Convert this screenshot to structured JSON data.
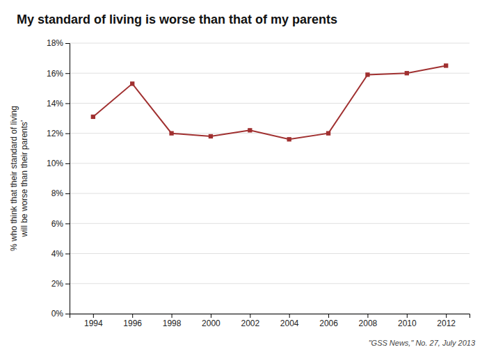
{
  "chart_data": {
    "type": "line",
    "title": "My standard of living is worse than that of my parents",
    "ylabel": "% who think that their standard of living\nwill be worse than their parents’",
    "annotations": [
      "\"GSS News,\" No. 27, July 2013"
    ],
    "x": [
      1994,
      1996,
      1998,
      2000,
      2002,
      2004,
      2006,
      2008,
      2010,
      2012
    ],
    "y": [
      0.131,
      0.153,
      0.12,
      0.118,
      0.122,
      0.116,
      0.12,
      0.159,
      0.16,
      0.165
    ],
    "color": "#A03030",
    "marker": "square",
    "ylim": [
      0,
      0.18
    ],
    "yticks": [
      {
        "value": 0,
        "label": "0%"
      },
      {
        "value": 0.02,
        "label": "2%"
      },
      {
        "value": 0.04,
        "label": "4%"
      },
      {
        "value": 0.06,
        "label": "6%"
      },
      {
        "value": 0.08,
        "label": "8%"
      },
      {
        "value": 0.1,
        "label": "10%"
      },
      {
        "value": 0.12,
        "label": "12%"
      },
      {
        "value": 0.14,
        "label": "14%"
      },
      {
        "value": 0.16,
        "label": "16%"
      },
      {
        "value": 0.18,
        "label": "18%"
      }
    ],
    "xlim": [
      1992.8,
      2013.2
    ],
    "xticks": [
      1994,
      1996,
      1998,
      2000,
      2002,
      2004,
      2006,
      2008,
      2010,
      2012
    ],
    "grid": true
  }
}
